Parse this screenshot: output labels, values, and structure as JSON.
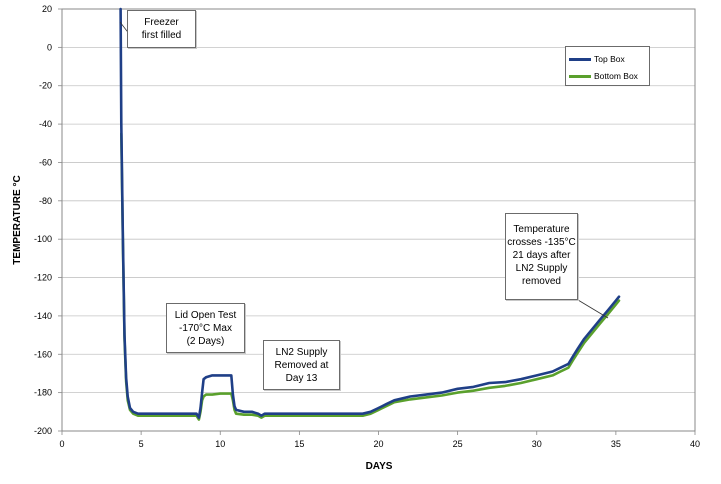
{
  "chart_data": {
    "type": "line",
    "xlabel": "DAYS",
    "ylabel": "TEMPERATURE °C",
    "xlim": [
      0,
      40
    ],
    "ylim": [
      -200,
      20
    ],
    "xticks": [
      0,
      5,
      10,
      15,
      20,
      25,
      30,
      35,
      40
    ],
    "yticks": [
      20,
      0,
      -20,
      -40,
      -60,
      -80,
      -100,
      -120,
      -140,
      -160,
      -180,
      -200
    ],
    "grid": true,
    "legend_position": "top-right",
    "series": [
      {
        "name": "Top Box",
        "color": "#1f3f87",
        "x": [
          3.7,
          3.75,
          3.85,
          3.95,
          4.05,
          4.15,
          4.3,
          4.5,
          4.8,
          5.2,
          6,
          7,
          8,
          8.5,
          8.65,
          8.75,
          8.85,
          8.95,
          9.1,
          9.5,
          10,
          10.5,
          10.7,
          10.8,
          10.9,
          11,
          11.5,
          12,
          12.4,
          12.6,
          12.8,
          13,
          14,
          15,
          16,
          17,
          18,
          19,
          19.5,
          20,
          20.5,
          21,
          22,
          23,
          24,
          25,
          26,
          27,
          28,
          29,
          30,
          31,
          31.5,
          32,
          32.3,
          32.6,
          33,
          33.5,
          34,
          34.5,
          35,
          35.2
        ],
        "values": [
          20,
          -40,
          -100,
          -150,
          -172,
          -182,
          -188,
          -190,
          -191,
          -191,
          -191,
          -191,
          -191,
          -191,
          -193,
          -188,
          -180,
          -173,
          -172,
          -171,
          -171,
          -171,
          -171,
          -181,
          -187,
          -189,
          -190,
          -190,
          -191,
          -192,
          -191,
          -191,
          -191,
          -191,
          -191,
          -191,
          -191,
          -191,
          -190,
          -188,
          -186,
          -184,
          -182,
          -181,
          -180,
          -178,
          -177,
          -175,
          -174.5,
          -173,
          -171,
          -169,
          -167,
          -165,
          -161,
          -157,
          -152,
          -147,
          -142,
          -137,
          -132,
          -130
        ]
      },
      {
        "name": "Bottom Box",
        "color": "#5aa02c",
        "x": [
          3.75,
          3.85,
          3.95,
          4.05,
          4.15,
          4.3,
          4.5,
          4.8,
          5.2,
          6,
          7,
          8,
          8.5,
          8.65,
          8.75,
          8.85,
          8.95,
          9.1,
          9.5,
          10,
          10.5,
          10.7,
          10.8,
          10.9,
          11,
          11.5,
          12,
          12.4,
          12.6,
          12.8,
          13,
          14,
          15,
          16,
          17,
          18,
          19,
          19.5,
          20,
          20.5,
          21,
          22,
          23,
          24,
          25,
          26,
          27,
          28,
          29,
          30,
          31,
          31.5,
          32,
          32.3,
          32.6,
          33,
          33.5,
          34,
          34.5,
          35,
          35.2
        ],
        "values": [
          -45,
          -102,
          -152,
          -174,
          -184,
          -189,
          -191,
          -192,
          -192,
          -192,
          -192,
          -192,
          -192,
          -194,
          -190,
          -184,
          -182,
          -181,
          -181,
          -180.5,
          -180.5,
          -180.5,
          -184,
          -189,
          -191,
          -191.5,
          -191.5,
          -192,
          -193,
          -192,
          -192,
          -192,
          -192,
          -192,
          -192,
          -192,
          -192,
          -191,
          -189,
          -187,
          -185,
          -183.5,
          -182.5,
          -181.5,
          -180,
          -179,
          -177.5,
          -176.5,
          -175,
          -173,
          -171,
          -169,
          -167,
          -163,
          -159,
          -154,
          -149,
          -144,
          -139,
          -134,
          -132
        ]
      }
    ],
    "annotations": [
      {
        "id": "freezer",
        "text": "Freezer\nfirst filled"
      },
      {
        "id": "lid",
        "text": "Lid Open Test\n-170°C Max\n(2 Days)"
      },
      {
        "id": "ln2",
        "text": "LN2 Supply\nRemoved at\nDay 13"
      },
      {
        "id": "temp",
        "text": "Temperature\ncrosses -135°C\n21 days after\nLN2 Supply\nremoved"
      }
    ]
  }
}
